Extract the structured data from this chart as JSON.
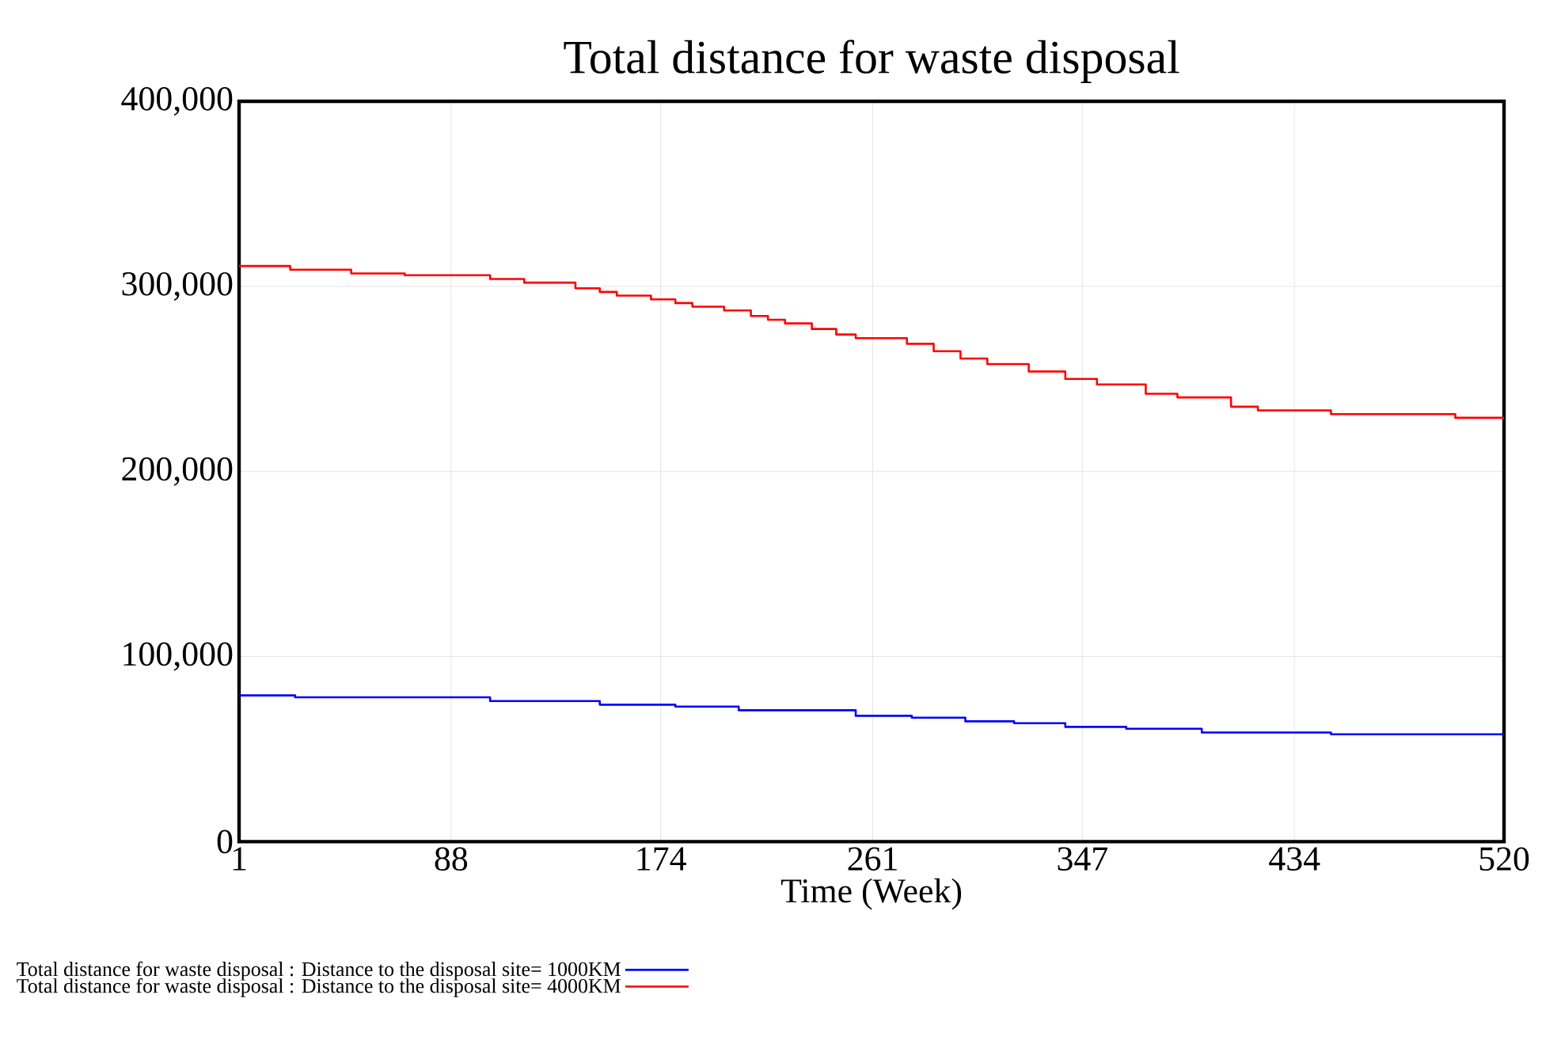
{
  "chart_data": {
    "type": "step",
    "title": "Total distance for waste disposal",
    "xlabel": "Time (Week)",
    "xlim": [
      1,
      520
    ],
    "xticks": [
      1,
      88,
      174,
      261,
      347,
      434,
      520
    ],
    "ylim": [
      0,
      400000
    ],
    "yticks": [
      {
        "value": 0,
        "label": "0"
      },
      {
        "value": 100000,
        "label": "100,000"
      },
      {
        "value": 200000,
        "label": "200,000"
      },
      {
        "value": 300000,
        "label": "300,000"
      },
      {
        "value": 400000,
        "label": "400,000"
      }
    ],
    "grid": true,
    "legend": "bottom",
    "series": [
      {
        "name": "Total distance for waste disposal : Distance to the disposal site= 1000KM",
        "color": "#0000ff",
        "x": [
          1,
          24,
          104,
          149,
          180,
          206,
          254,
          277,
          299,
          319,
          340,
          365,
          396,
          449,
          520
        ],
        "values": [
          79000,
          78000,
          76000,
          74000,
          73000,
          71000,
          68000,
          67000,
          65000,
          64000,
          62000,
          61000,
          59000,
          58000,
          58000
        ]
      },
      {
        "name": "Total distance for waste disposal : Distance to the disposal site= 4000KM",
        "color": "#ff0000",
        "x": [
          1,
          22,
          47,
          69,
          104,
          118,
          139,
          149,
          156,
          170,
          180,
          187,
          200,
          211,
          218,
          225,
          236,
          246,
          254,
          275,
          286,
          297,
          308,
          325,
          340,
          353,
          373,
          386,
          408,
          419,
          449,
          500,
          520
        ],
        "values": [
          311000,
          309000,
          307000,
          306000,
          304000,
          302000,
          299000,
          297000,
          295000,
          293000,
          291000,
          289000,
          287000,
          284000,
          282000,
          280000,
          277000,
          274000,
          272000,
          269000,
          265000,
          261000,
          258000,
          254000,
          250000,
          247000,
          242000,
          240000,
          235000,
          233000,
          231000,
          229000,
          228000
        ]
      }
    ]
  }
}
